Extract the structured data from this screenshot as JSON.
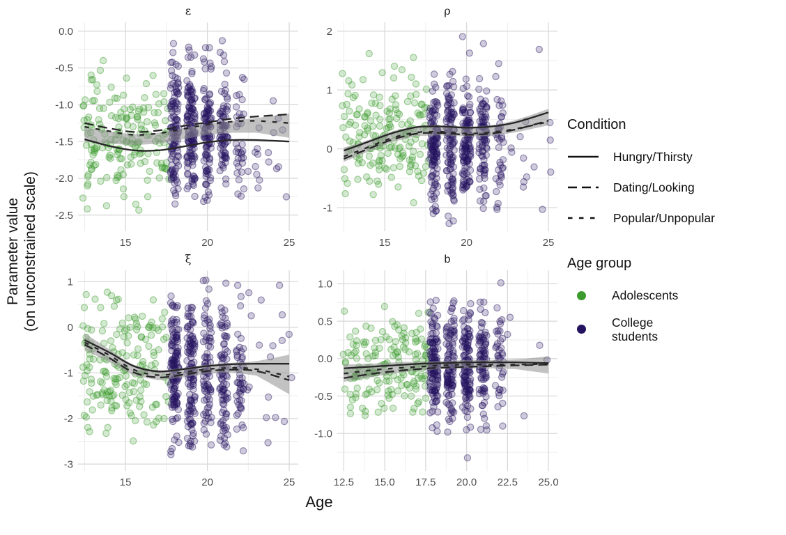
{
  "figure": {
    "ylabel_line1": "Parameter value",
    "ylabel_line2": "(on unconstrained scale)",
    "xlabel": "Age"
  },
  "legend": {
    "condition": {
      "title": "Condition",
      "entries": [
        {
          "label": "Hungry/Thirsty",
          "linetype": "solid"
        },
        {
          "label": "Dating/Looking",
          "linetype": "long-dash"
        },
        {
          "label": "Popular/Unpopular",
          "linetype": "short-dash"
        }
      ]
    },
    "age_group": {
      "title": "Age group",
      "entries": [
        {
          "label": "Adolescents",
          "color": "#3c9b2d"
        },
        {
          "label": "College students",
          "color": "#25135f"
        }
      ]
    }
  },
  "colors": {
    "adolescents": "#3c9b2d",
    "college": "#25135f",
    "line": "#262626",
    "ribbon": "#8f8f8f",
    "grid_major": "#d9d9d9",
    "grid_minor": "#ededed",
    "tick_text": "#4d4d4d",
    "title_text": "#1a1a1a"
  },
  "chart_data": {
    "type": "scatter",
    "x_variable": "Age",
    "y_variable": "Parameter value (on unconstrained scale)",
    "facets": [
      {
        "id": "epsilon",
        "title": "ε",
        "title_script": "greek",
        "xlim": [
          12.1,
          25.55
        ],
        "ylim": [
          -2.72,
          0.12
        ],
        "xticks": {
          "values": [
            15,
            20,
            25
          ],
          "labels": [
            "15",
            "20",
            "25"
          ]
        },
        "xminor": [
          12.5,
          17.5,
          22.5
        ],
        "yticks": {
          "values": [
            0,
            -0.5,
            -1,
            -1.5,
            -2,
            -2.5
          ],
          "labels": [
            "0.0",
            "-0.5",
            "-1.0",
            "-1.5",
            "-2.0",
            "-2.5"
          ]
        },
        "yminor": [
          -0.25,
          -0.75,
          -1.25,
          -1.75,
          -2.25
        ],
        "smooth_x": [
          12.5,
          14,
          15.5,
          17,
          18.5,
          20,
          21.5,
          23,
          25
        ],
        "lines": [
          {
            "condition": "Hungry/Thirsty",
            "linetype": "solid",
            "y": [
              -1.47,
              -1.56,
              -1.62,
              -1.62,
              -1.57,
              -1.51,
              -1.48,
              -1.48,
              -1.5
            ]
          },
          {
            "condition": "Dating/Looking",
            "linetype": "long-dash",
            "y": [
              -1.25,
              -1.32,
              -1.37,
              -1.35,
              -1.29,
              -1.24,
              -1.19,
              -1.16,
              -1.13
            ]
          },
          {
            "condition": "Popular/Unpopular",
            "linetype": "short-dash",
            "y": [
              -1.3,
              -1.36,
              -1.41,
              -1.39,
              -1.33,
              -1.27,
              -1.23,
              -1.22,
              -1.25
            ]
          }
        ],
        "ribbon": {
          "upper": [
            -1.31,
            -1.36,
            -1.4,
            -1.38,
            -1.32,
            -1.26,
            -1.22,
            -1.18,
            -1.12
          ],
          "lower": [
            -1.5,
            -1.53,
            -1.55,
            -1.53,
            -1.47,
            -1.41,
            -1.38,
            -1.38,
            -1.45
          ]
        },
        "scatter": {
          "adolescents": {
            "n": 175,
            "x_range": [
              12.4,
              17.7
            ],
            "y_mean": -1.45,
            "y_sd": 0.42,
            "y_clamp": [
              -2.45,
              -0.28
            ],
            "seed": 11
          },
          "college": {
            "n": 470,
            "columns": [
              18,
              19,
              20,
              21,
              22
            ],
            "weights": [
              0.24,
              0.26,
              0.22,
              0.18,
              0.1
            ],
            "jitter": 0.25,
            "tail_frac": 0.03,
            "tail_range": [
              22.4,
              25.2
            ],
            "y_mean": -1.4,
            "y_sd": 0.5,
            "y_clamp": [
              -2.35,
              -0.1
            ],
            "seed": 12
          }
        }
      },
      {
        "id": "rho",
        "title": "ρ",
        "title_script": "greek",
        "xlim": [
          12.1,
          25.55
        ],
        "ylim": [
          -1.4,
          2.15
        ],
        "xticks": {
          "values": [
            15,
            20,
            25
          ],
          "labels": [
            "15",
            "20",
            "25"
          ]
        },
        "xminor": [
          12.5,
          17.5,
          22.5
        ],
        "yticks": {
          "values": [
            2,
            1,
            0,
            -1
          ],
          "labels": [
            "2",
            "1",
            "0",
            "-1"
          ]
        },
        "yminor": [
          1.5,
          0.5,
          -0.5
        ],
        "smooth_x": [
          12.5,
          14,
          15.5,
          17,
          18.5,
          20,
          21.5,
          23,
          25
        ],
        "lines": [
          {
            "condition": "Hungry/Thirsty",
            "linetype": "solid",
            "y": [
              -0.03,
              0.12,
              0.27,
              0.37,
              0.38,
              0.36,
              0.38,
              0.45,
              0.62
            ]
          },
          {
            "condition": "Dating/Looking",
            "linetype": "long-dash",
            "y": [
              -0.17,
              0.0,
              0.16,
              0.26,
              0.27,
              0.24,
              0.26,
              0.33,
              0.48
            ]
          },
          {
            "condition": "Popular/Unpopular",
            "linetype": "short-dash",
            "y": [
              -0.13,
              0.03,
              0.19,
              0.28,
              0.29,
              0.26,
              0.28,
              0.34,
              0.46
            ]
          }
        ],
        "ribbon": {
          "upper": [
            0.02,
            0.15,
            0.3,
            0.39,
            0.4,
            0.38,
            0.4,
            0.49,
            0.68
          ],
          "lower": [
            -0.22,
            -0.05,
            0.12,
            0.22,
            0.23,
            0.21,
            0.22,
            0.28,
            0.4
          ]
        },
        "scatter": {
          "adolescents": {
            "n": 175,
            "x_range": [
              12.4,
              17.7
            ],
            "y_mean": 0.3,
            "y_sd": 0.5,
            "y_clamp": [
              -1.05,
              1.8
            ],
            "seed": 21
          },
          "college": {
            "n": 470,
            "columns": [
              18,
              19,
              20,
              21,
              22
            ],
            "weights": [
              0.24,
              0.26,
              0.22,
              0.18,
              0.1
            ],
            "jitter": 0.25,
            "tail_frac": 0.03,
            "tail_range": [
              22.4,
              25.2
            ],
            "y_mean": 0.08,
            "y_sd": 0.55,
            "y_clamp": [
              -1.3,
              1.92
            ],
            "seed": 22
          }
        }
      },
      {
        "id": "xi",
        "title": "ξ",
        "title_script": "greek",
        "xlim": [
          12.1,
          25.55
        ],
        "ylim": [
          -3.15,
          1.25
        ],
        "xticks": {
          "values": [
            15,
            20,
            25
          ],
          "labels": [
            "15",
            "20",
            "25"
          ]
        },
        "xminor": [
          12.5,
          17.5,
          22.5
        ],
        "yticks": {
          "values": [
            1,
            0,
            -1,
            -2,
            -3
          ],
          "labels": [
            "1",
            "0",
            "-1",
            "-2",
            "-3"
          ]
        },
        "yminor": [
          0.5,
          -0.5,
          -1.5,
          -2.5
        ],
        "smooth_x": [
          12.5,
          14,
          15.5,
          17,
          18.5,
          20,
          21.5,
          23,
          25
        ],
        "lines": [
          {
            "condition": "Hungry/Thirsty",
            "linetype": "solid",
            "y": [
              -0.28,
              -0.55,
              -0.85,
              -0.97,
              -0.92,
              -0.85,
              -0.81,
              -0.8,
              -0.8
            ]
          },
          {
            "condition": "Dating/Looking",
            "linetype": "long-dash",
            "y": [
              -0.38,
              -0.67,
              -0.99,
              -1.1,
              -1.04,
              -0.96,
              -0.93,
              -0.96,
              -1.16
            ]
          },
          {
            "condition": "Popular/Unpopular",
            "linetype": "short-dash",
            "y": [
              -0.33,
              -0.61,
              -0.93,
              -1.05,
              -0.99,
              -0.92,
              -0.89,
              -0.92,
              -1.08
            ]
          }
        ],
        "ribbon": {
          "upper": [
            -0.13,
            -0.48,
            -0.82,
            -0.94,
            -0.89,
            -0.82,
            -0.78,
            -0.74,
            -0.6
          ],
          "lower": [
            -0.5,
            -0.76,
            -1.06,
            -1.16,
            -1.1,
            -1.02,
            -0.99,
            -1.06,
            -1.47
          ]
        },
        "scatter": {
          "adolescents": {
            "n": 175,
            "x_range": [
              12.4,
              17.7
            ],
            "y_mean": -1.0,
            "y_sd": 0.85,
            "y_clamp": [
              -2.5,
              1.05
            ],
            "seed": 31
          },
          "college": {
            "n": 470,
            "columns": [
              18,
              19,
              20,
              21,
              22
            ],
            "weights": [
              0.24,
              0.26,
              0.22,
              0.18,
              0.1
            ],
            "jitter": 0.25,
            "tail_frac": 0.03,
            "tail_range": [
              22.4,
              25.2
            ],
            "y_mean": -1.05,
            "y_sd": 0.85,
            "y_clamp": [
              -2.88,
              1.05
            ],
            "seed": 32
          }
        }
      },
      {
        "id": "b",
        "title": "b",
        "title_script": "latin",
        "xlim": [
          12.1,
          25.55
        ],
        "ylim": [
          -1.5,
          1.18
        ],
        "xticks": {
          "values": [
            12.5,
            15,
            17.5,
            20,
            22.5,
            25
          ],
          "labels": [
            "12.5",
            "15.0",
            "17.5",
            "20.0",
            "22.5",
            "25.0"
          ]
        },
        "xminor": [
          13.75,
          16.25,
          18.75,
          21.25,
          23.75
        ],
        "yticks": {
          "values": [
            1,
            0.5,
            0,
            -0.5,
            -1
          ],
          "labels": [
            "1.0",
            "0.5",
            "0.0",
            "-0.5",
            "-1.0"
          ]
        },
        "yminor": [
          0.75,
          0.25,
          -0.25,
          -0.75,
          -1.25
        ],
        "smooth_x": [
          12.5,
          14,
          15.5,
          17,
          18.5,
          20,
          21.5,
          23,
          25
        ],
        "lines": [
          {
            "condition": "Hungry/Thirsty",
            "linetype": "solid",
            "y": [
              -0.13,
              -0.11,
              -0.09,
              -0.07,
              -0.06,
              -0.05,
              -0.05,
              -0.05,
              -0.06
            ]
          },
          {
            "condition": "Dating/Looking",
            "linetype": "long-dash",
            "y": [
              -0.26,
              -0.21,
              -0.17,
              -0.14,
              -0.12,
              -0.11,
              -0.1,
              -0.09,
              -0.08
            ]
          },
          {
            "condition": "Popular/Unpopular",
            "linetype": "short-dash",
            "y": [
              -0.2,
              -0.16,
              -0.13,
              -0.11,
              -0.09,
              -0.08,
              -0.08,
              -0.08,
              -0.07
            ]
          }
        ],
        "ribbon": {
          "upper": [
            -0.08,
            -0.07,
            -0.05,
            -0.04,
            -0.03,
            -0.02,
            -0.02,
            -0.01,
            0.03
          ],
          "lower": [
            -0.31,
            -0.25,
            -0.2,
            -0.16,
            -0.14,
            -0.13,
            -0.13,
            -0.14,
            -0.2
          ]
        },
        "scatter": {
          "adolescents": {
            "n": 175,
            "x_range": [
              12.4,
              17.7
            ],
            "y_mean": -0.12,
            "y_sd": 0.32,
            "y_clamp": [
              -0.92,
              0.75
            ],
            "seed": 41
          },
          "college": {
            "n": 470,
            "columns": [
              18,
              19,
              20,
              21,
              22
            ],
            "weights": [
              0.24,
              0.26,
              0.22,
              0.18,
              0.1
            ],
            "jitter": 0.25,
            "tail_frac": 0.03,
            "tail_range": [
              22.4,
              25.2
            ],
            "y_mean": -0.08,
            "y_sd": 0.38,
            "y_clamp": [
              -1.38,
              1.08
            ],
            "seed": 42
          }
        }
      }
    ]
  }
}
